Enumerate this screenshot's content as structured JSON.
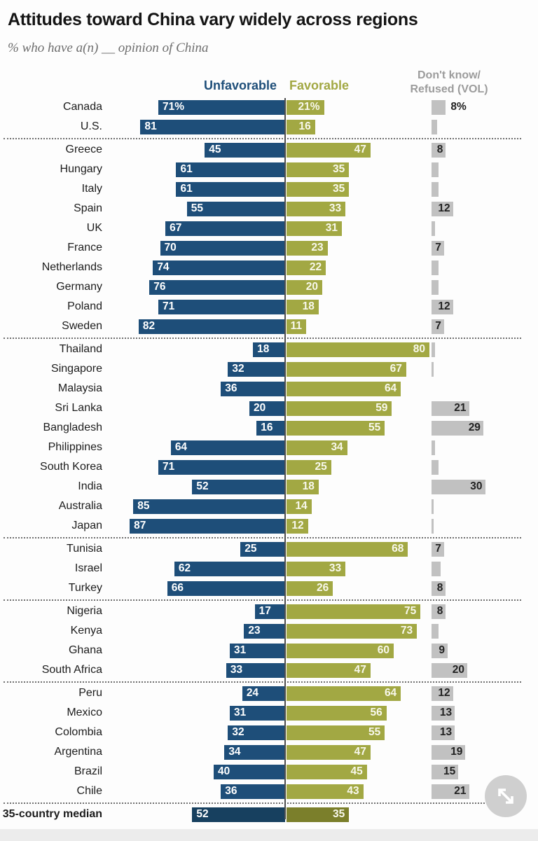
{
  "title": "Attitudes toward China vary widely across regions",
  "subtitle": "% who have a(n) __ opinion of China",
  "legend": {
    "unfavorable_label": "Unfavorable",
    "favorable_label": "Favorable",
    "dk_line1": "Don't know/",
    "dk_line2": "Refused (VOL)"
  },
  "colors": {
    "unfavorable": "#1e4e79",
    "unfavorable_median": "#17405f",
    "favorable": "#a2a843",
    "favorable_median": "#7b7f2b",
    "dk_bar": "#c1c1c1",
    "dk_text": "#222222",
    "axis_line": "#4d4d4d"
  },
  "chart_data": {
    "type": "bar",
    "orientation": "horizontal-diverging",
    "unit": "%",
    "series": [
      "Unfavorable",
      "Favorable",
      "Don't know/Refused (VOL)"
    ],
    "axis_note": "Unfavorable bars extend left of center axis, Favorable right; Don't know/Refused shown in separate gray column",
    "groups": [
      [
        {
          "country": "Canada",
          "unfavorable": 71,
          "favorable": 21,
          "dk": 8,
          "labels": {
            "unfav": "71%",
            "fav": "21%",
            "dk": "8%"
          },
          "dk_label_outside": true
        },
        {
          "country": "U.S.",
          "unfavorable": 81,
          "favorable": 16,
          "dk": 3,
          "labels": {
            "unfav": "81",
            "fav": "16",
            "dk": ""
          }
        }
      ],
      [
        {
          "country": "Greece",
          "unfavorable": 45,
          "favorable": 47,
          "dk": 8,
          "labels": {
            "unfav": "45",
            "fav": "47",
            "dk": "8"
          }
        },
        {
          "country": "Hungary",
          "unfavorable": 61,
          "favorable": 35,
          "dk": 4,
          "labels": {
            "unfav": "61",
            "fav": "35",
            "dk": ""
          }
        },
        {
          "country": "Italy",
          "unfavorable": 61,
          "favorable": 35,
          "dk": 4,
          "labels": {
            "unfav": "61",
            "fav": "35",
            "dk": ""
          }
        },
        {
          "country": "Spain",
          "unfavorable": 55,
          "favorable": 33,
          "dk": 12,
          "labels": {
            "unfav": "55",
            "fav": "33",
            "dk": "12"
          }
        },
        {
          "country": "UK",
          "unfavorable": 67,
          "favorable": 31,
          "dk": 2,
          "labels": {
            "unfav": "67",
            "fav": "31",
            "dk": ""
          }
        },
        {
          "country": "France",
          "unfavorable": 70,
          "favorable": 23,
          "dk": 7,
          "labels": {
            "unfav": "70",
            "fav": "23",
            "dk": "7"
          }
        },
        {
          "country": "Netherlands",
          "unfavorable": 74,
          "favorable": 22,
          "dk": 4,
          "labels": {
            "unfav": "74",
            "fav": "22",
            "dk": ""
          }
        },
        {
          "country": "Germany",
          "unfavorable": 76,
          "favorable": 20,
          "dk": 4,
          "labels": {
            "unfav": "76",
            "fav": "20",
            "dk": ""
          }
        },
        {
          "country": "Poland",
          "unfavorable": 71,
          "favorable": 18,
          "dk": 12,
          "labels": {
            "unfav": "71",
            "fav": "18",
            "dk": "12"
          }
        },
        {
          "country": "Sweden",
          "unfavorable": 82,
          "favorable": 11,
          "dk": 7,
          "labels": {
            "unfav": "82",
            "fav": "11",
            "dk": "7"
          }
        }
      ],
      [
        {
          "country": "Thailand",
          "unfavorable": 18,
          "favorable": 80,
          "dk": 2,
          "labels": {
            "unfav": "18",
            "fav": "80",
            "dk": ""
          }
        },
        {
          "country": "Singapore",
          "unfavorable": 32,
          "favorable": 67,
          "dk": 1,
          "labels": {
            "unfav": "32",
            "fav": "67",
            "dk": ""
          }
        },
        {
          "country": "Malaysia",
          "unfavorable": 36,
          "favorable": 64,
          "dk": 0,
          "labels": {
            "unfav": "36",
            "fav": "64",
            "dk": ""
          }
        },
        {
          "country": "Sri Lanka",
          "unfavorable": 20,
          "favorable": 59,
          "dk": 21,
          "labels": {
            "unfav": "20",
            "fav": "59",
            "dk": "21"
          }
        },
        {
          "country": "Bangladesh",
          "unfavorable": 16,
          "favorable": 55,
          "dk": 29,
          "labels": {
            "unfav": "16",
            "fav": "55",
            "dk": "29"
          }
        },
        {
          "country": "Philippines",
          "unfavorable": 64,
          "favorable": 34,
          "dk": 2,
          "labels": {
            "unfav": "64",
            "fav": "34",
            "dk": ""
          }
        },
        {
          "country": "South Korea",
          "unfavorable": 71,
          "favorable": 25,
          "dk": 4,
          "labels": {
            "unfav": "71",
            "fav": "25",
            "dk": ""
          }
        },
        {
          "country": "India",
          "unfavorable": 52,
          "favorable": 18,
          "dk": 30,
          "labels": {
            "unfav": "52",
            "fav": "18",
            "dk": "30"
          }
        },
        {
          "country": "Australia",
          "unfavorable": 85,
          "favorable": 14,
          "dk": 1,
          "labels": {
            "unfav": "85",
            "fav": "14",
            "dk": ""
          }
        },
        {
          "country": "Japan",
          "unfavorable": 87,
          "favorable": 12,
          "dk": 1,
          "labels": {
            "unfav": "87",
            "fav": "12",
            "dk": ""
          }
        }
      ],
      [
        {
          "country": "Tunisia",
          "unfavorable": 25,
          "favorable": 68,
          "dk": 7,
          "labels": {
            "unfav": "25",
            "fav": "68",
            "dk": "7"
          }
        },
        {
          "country": "Israel",
          "unfavorable": 62,
          "favorable": 33,
          "dk": 5,
          "labels": {
            "unfav": "62",
            "fav": "33",
            "dk": ""
          }
        },
        {
          "country": "Turkey",
          "unfavorable": 66,
          "favorable": 26,
          "dk": 8,
          "labels": {
            "unfav": "66",
            "fav": "26",
            "dk": "8"
          }
        }
      ],
      [
        {
          "country": "Nigeria",
          "unfavorable": 17,
          "favorable": 75,
          "dk": 8,
          "labels": {
            "unfav": "17",
            "fav": "75",
            "dk": "8"
          }
        },
        {
          "country": "Kenya",
          "unfavorable": 23,
          "favorable": 73,
          "dk": 4,
          "labels": {
            "unfav": "23",
            "fav": "73",
            "dk": ""
          }
        },
        {
          "country": "Ghana",
          "unfavorable": 31,
          "favorable": 60,
          "dk": 9,
          "labels": {
            "unfav": "31",
            "fav": "60",
            "dk": "9"
          }
        },
        {
          "country": "South Africa",
          "unfavorable": 33,
          "favorable": 47,
          "dk": 20,
          "labels": {
            "unfav": "33",
            "fav": "47",
            "dk": "20"
          }
        }
      ],
      [
        {
          "country": "Peru",
          "unfavorable": 24,
          "favorable": 64,
          "dk": 12,
          "labels": {
            "unfav": "24",
            "fav": "64",
            "dk": "12"
          }
        },
        {
          "country": "Mexico",
          "unfavorable": 31,
          "favorable": 56,
          "dk": 13,
          "labels": {
            "unfav": "31",
            "fav": "56",
            "dk": "13"
          }
        },
        {
          "country": "Colombia",
          "unfavorable": 32,
          "favorable": 55,
          "dk": 13,
          "labels": {
            "unfav": "32",
            "fav": "55",
            "dk": "13"
          }
        },
        {
          "country": "Argentina",
          "unfavorable": 34,
          "favorable": 47,
          "dk": 19,
          "labels": {
            "unfav": "34",
            "fav": "47",
            "dk": "19"
          }
        },
        {
          "country": "Brazil",
          "unfavorable": 40,
          "favorable": 45,
          "dk": 15,
          "labels": {
            "unfav": "40",
            "fav": "45",
            "dk": "15"
          }
        },
        {
          "country": "Chile",
          "unfavorable": 36,
          "favorable": 43,
          "dk": 21,
          "labels": {
            "unfav": "36",
            "fav": "43",
            "dk": "21"
          }
        }
      ]
    ],
    "median": {
      "country": "35-country median",
      "unfavorable": 52,
      "favorable": 35,
      "dk": 0,
      "labels": {
        "unfav": "52",
        "fav": "35",
        "dk": ""
      },
      "median": true
    }
  }
}
